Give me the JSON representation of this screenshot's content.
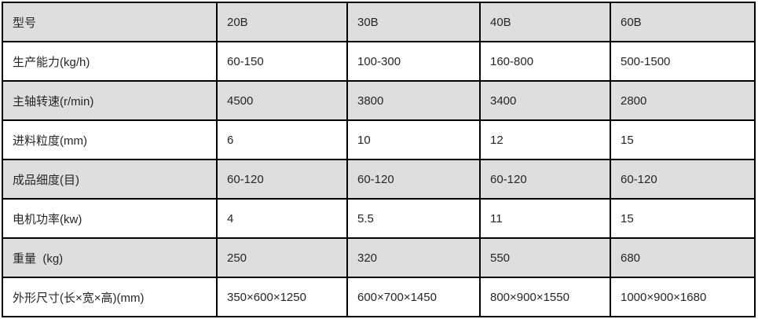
{
  "colors": {
    "shaded_row_bg": "#dedede",
    "plain_row_bg": "#ffffff",
    "border": "#000000",
    "text": "#262626"
  },
  "table": {
    "rows": [
      [
        "型号",
        "20B",
        "30B",
        "40B",
        "60B"
      ],
      [
        "生产能力(kg/h)",
        "60-150",
        "100-300",
        "160-800",
        "500-1500"
      ],
      [
        "主轴转速(r/min)",
        "4500",
        "3800",
        "3400",
        "2800"
      ],
      [
        "进料粒度(mm)",
        "6",
        "10",
        "12",
        "15"
      ],
      [
        "成品细度(目)",
        "60-120",
        "60-120",
        "60-120",
        "60-120"
      ],
      [
        "电机功率(kw)",
        "4",
        "5.5",
        "11",
        "15"
      ],
      [
        "重量  (kg)",
        "250",
        "320",
        "550",
        "680"
      ],
      [
        "外形尺寸(长×宽×高)(mm)",
        "350×600×1250",
        "600×700×1450",
        "800×900×1550",
        "1000×900×1680"
      ]
    ]
  }
}
